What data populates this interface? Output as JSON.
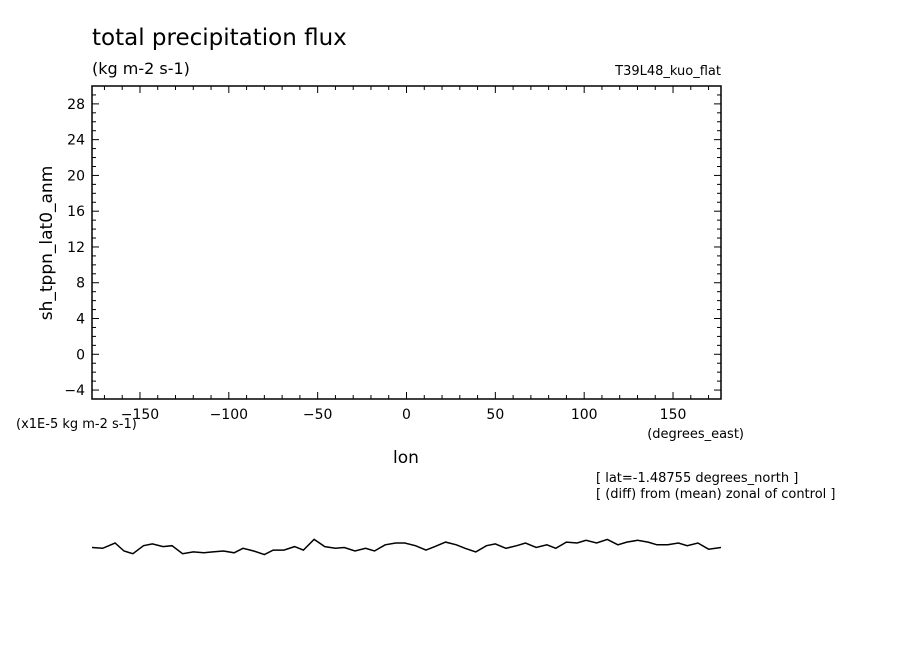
{
  "chart_data": {
    "type": "line",
    "title": "total precipitation flux",
    "units": "(kg m-2 s-1)",
    "run_label": "T39L48_kuo_flat",
    "ylabel": "sh_tppn_lat0_anm",
    "yscale_note": "(x1E-5 kg m-2 s-1)",
    "xlabel": "lon",
    "xunits": "(degrees_east)",
    "annotations": [
      "[ lat=-1.48755 degrees_north ]",
      "[ (diff) from (mean) zonal of control ]"
    ],
    "xlim": [
      -177,
      177
    ],
    "ylim": [
      -5,
      30
    ],
    "xticks": [
      -150,
      -100,
      -50,
      0,
      50,
      100,
      150
    ],
    "xtick_labels": [
      "-150",
      "-100",
      "-50",
      "0",
      "50",
      "100",
      "150"
    ],
    "yticks": [
      -4,
      0,
      4,
      8,
      12,
      16,
      20,
      24,
      28
    ],
    "ytick_labels": [
      "-4",
      "0",
      "4",
      "8",
      "12",
      "16",
      "20",
      "24",
      "28"
    ],
    "grid": false,
    "series": [
      {
        "x": [
          -177,
          -171,
          -164,
          -159,
          -154,
          -148,
          -143,
          -137,
          -132,
          -126,
          -120,
          -114,
          -109,
          -103,
          -97,
          -92,
          -86,
          -80,
          -75,
          -69,
          -63,
          -58,
          -52,
          -46,
          -40,
          -35,
          -29,
          -23,
          -18,
          -12,
          -6,
          -1,
          5,
          11,
          16,
          22,
          28,
          33,
          39,
          45,
          50,
          56,
          62,
          67,
          73,
          79,
          84,
          90,
          96,
          101,
          107,
          113,
          119,
          124,
          130,
          136,
          141,
          147,
          153,
          158,
          164,
          170,
          177
        ],
        "y": [
          -21.6,
          -21.7,
          -21.1,
          -22.0,
          -22.3,
          -21.4,
          -21.2,
          -21.5,
          -21.4,
          -22.3,
          -22.1,
          -22.2,
          -22.1,
          -22.0,
          -22.2,
          -21.7,
          -22.0,
          -22.4,
          -21.9,
          -21.9,
          -21.5,
          -21.9,
          -20.7,
          -21.5,
          -21.7,
          -21.6,
          -22.0,
          -21.7,
          -22.0,
          -21.3,
          -21.1,
          -21.1,
          -21.4,
          -21.9,
          -21.5,
          -21.0,
          -21.3,
          -21.7,
          -22.1,
          -21.4,
          -21.2,
          -21.7,
          -21.4,
          -21.1,
          -21.6,
          -21.3,
          -21.7,
          -21.0,
          -21.1,
          -20.8,
          -21.1,
          -20.7,
          -21.3,
          -21.0,
          -20.8,
          -21.0,
          -21.3,
          -21.3,
          -21.1,
          -21.4,
          -21.1,
          -21.8,
          -21.6
        ]
      }
    ]
  }
}
